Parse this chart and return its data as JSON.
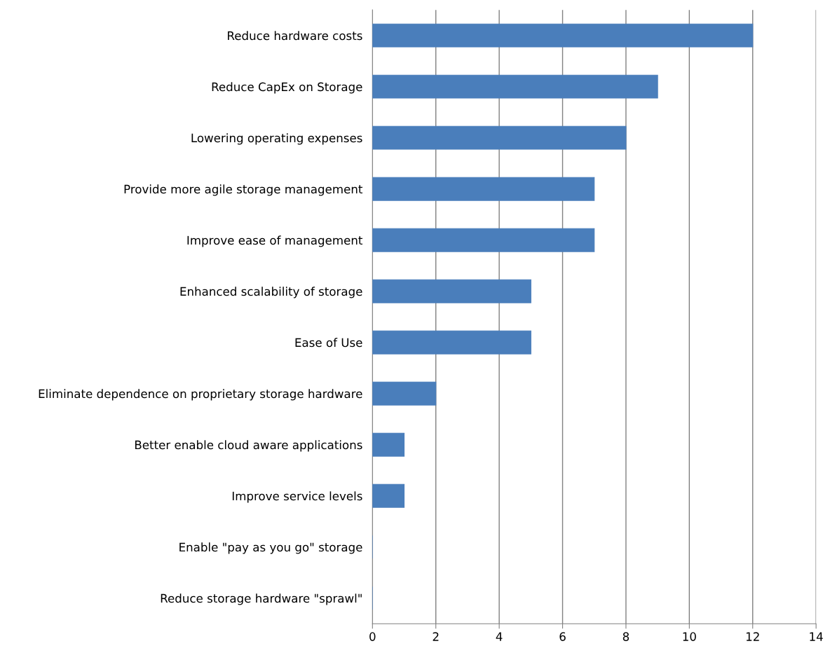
{
  "chart_data": {
    "type": "bar",
    "orientation": "horizontal",
    "categories": [
      "Reduce hardware costs",
      "Reduce CapEx on Storage",
      "Lowering operating expenses",
      "Provide more agile storage management",
      "Improve ease of management",
      "Enhanced scalability of storage",
      "Ease of Use",
      "Eliminate dependence on proprietary storage hardware",
      "Better enable cloud aware applications",
      "Improve service levels",
      "Enable \"pay as you go\" storage",
      "Reduce storage hardware \"sprawl\""
    ],
    "values": [
      12,
      9,
      8,
      7,
      7,
      5,
      5,
      2,
      1,
      1,
      0,
      0
    ],
    "color": "#4a7ebb",
    "xlim": [
      0,
      14
    ],
    "xticks": [
      0,
      2,
      4,
      6,
      8,
      10,
      12,
      14
    ],
    "grid": "x",
    "legend": false
  }
}
